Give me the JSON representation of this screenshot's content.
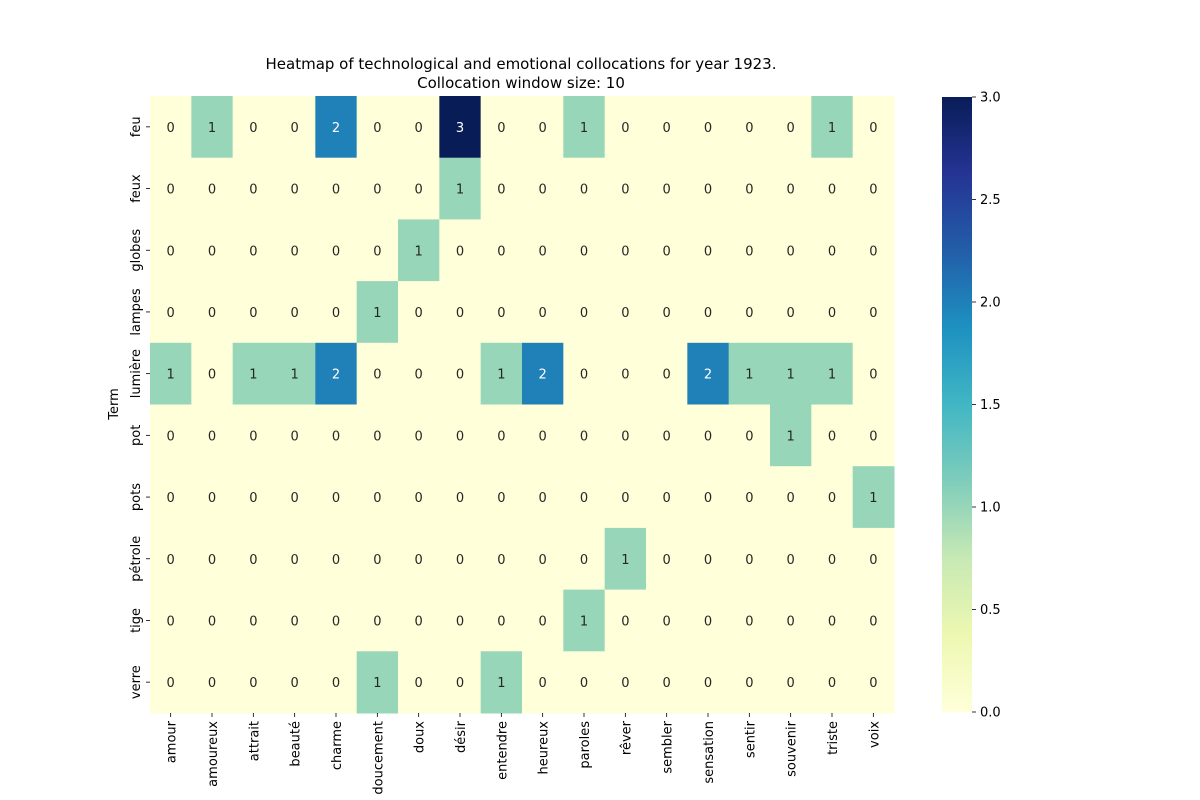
{
  "chart_data": {
    "type": "heatmap",
    "title_line1": "Heatmap of technological and emotional collocations for year 1923.",
    "title_line2": "Collocation window size: 10",
    "ylabel": "Term",
    "xlabel": "",
    "rows": [
      "feu",
      "feux",
      "globes",
      "lampes",
      "lumière",
      "pot",
      "pots",
      "pétrole",
      "tige",
      "verre"
    ],
    "columns": [
      "amour",
      "amoureux",
      "attrait",
      "beauté",
      "charme",
      "doucement",
      "doux",
      "désir",
      "entendre",
      "heureux",
      "paroles",
      "rêver",
      "sembler",
      "sensation",
      "sentir",
      "souvenir",
      "triste",
      "voix"
    ],
    "values": [
      [
        0,
        1,
        0,
        0,
        2,
        0,
        0,
        3,
        0,
        0,
        1,
        0,
        0,
        0,
        0,
        0,
        1,
        0
      ],
      [
        0,
        0,
        0,
        0,
        0,
        0,
        0,
        1,
        0,
        0,
        0,
        0,
        0,
        0,
        0,
        0,
        0,
        0
      ],
      [
        0,
        0,
        0,
        0,
        0,
        0,
        1,
        0,
        0,
        0,
        0,
        0,
        0,
        0,
        0,
        0,
        0,
        0
      ],
      [
        0,
        0,
        0,
        0,
        0,
        1,
        0,
        0,
        0,
        0,
        0,
        0,
        0,
        0,
        0,
        0,
        0,
        0
      ],
      [
        1,
        0,
        1,
        1,
        2,
        0,
        0,
        0,
        1,
        2,
        0,
        0,
        0,
        2,
        1,
        1,
        1,
        0
      ],
      [
        0,
        0,
        0,
        0,
        0,
        0,
        0,
        0,
        0,
        0,
        0,
        0,
        0,
        0,
        0,
        1,
        0,
        0
      ],
      [
        0,
        0,
        0,
        0,
        0,
        0,
        0,
        0,
        0,
        0,
        0,
        0,
        0,
        0,
        0,
        0,
        0,
        1
      ],
      [
        0,
        0,
        0,
        0,
        0,
        0,
        0,
        0,
        0,
        0,
        0,
        1,
        0,
        0,
        0,
        0,
        0,
        0
      ],
      [
        0,
        0,
        0,
        0,
        0,
        0,
        0,
        0,
        0,
        0,
        1,
        0,
        0,
        0,
        0,
        0,
        0,
        0
      ],
      [
        0,
        0,
        0,
        0,
        0,
        1,
        0,
        0,
        1,
        0,
        0,
        0,
        0,
        0,
        0,
        0,
        0,
        0
      ]
    ],
    "colorscale": "YlGnBu",
    "vmin": 0,
    "vmax": 3,
    "colorbar_ticks": [
      "0.0",
      "0.5",
      "1.0",
      "1.5",
      "2.0",
      "2.5",
      "3.0"
    ],
    "colors": {
      "0": "#ffffd9",
      "1": "#97d6b9",
      "2": "#2081b9",
      "3": "#081d58"
    },
    "annotations": true,
    "grid": false
  }
}
